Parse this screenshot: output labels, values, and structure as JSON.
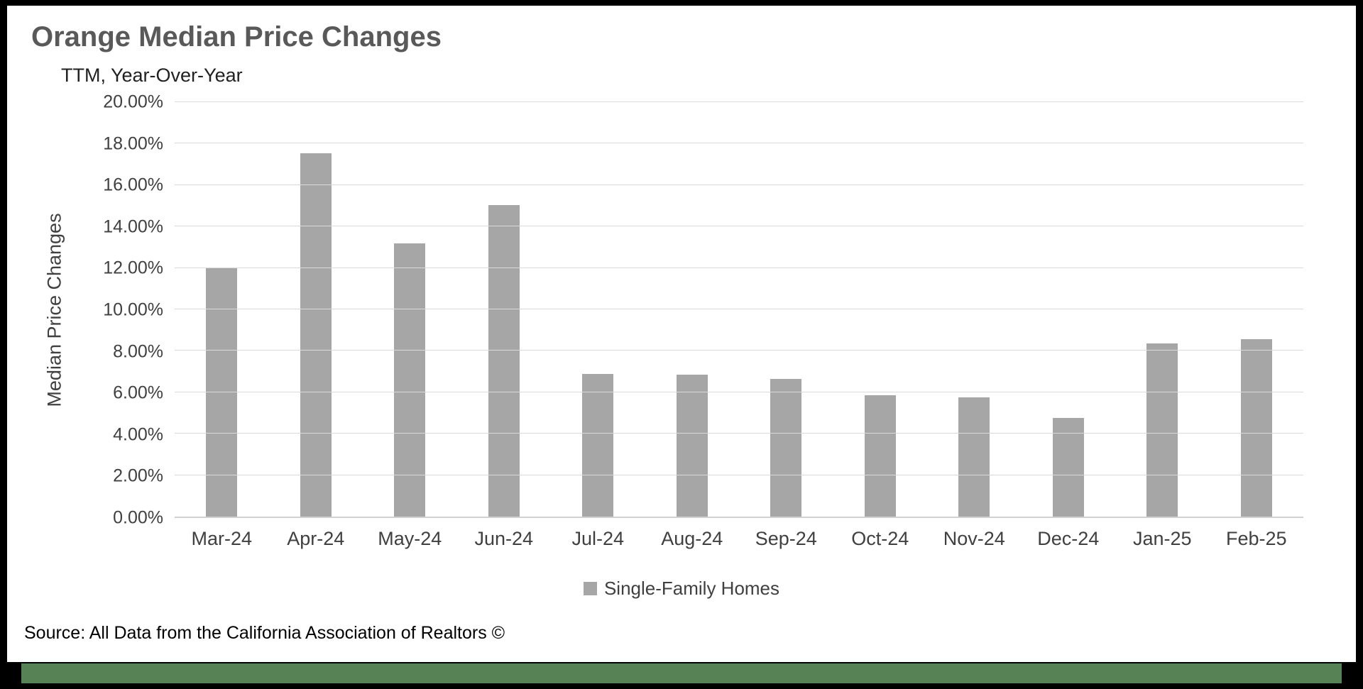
{
  "title": "Orange Median Price Changes",
  "subtitle": "TTM, Year-Over-Year",
  "source": "Source: All Data from the California Association of Realtors ©",
  "legend": {
    "label": "Single-Family Homes"
  },
  "colors": {
    "bar": "#a6a6a6",
    "gridline": "#d9d9d9",
    "title_text": "#595959",
    "accent_strip": "#568256",
    "frame": "#000000"
  },
  "chart_data": {
    "type": "bar",
    "title": "Orange Median Price Changes",
    "subtitle": "TTM, Year-Over-Year",
    "categories": [
      "Mar-24",
      "Apr-24",
      "May-24",
      "Jun-24",
      "Jul-24",
      "Aug-24",
      "Sep-24",
      "Oct-24",
      "Nov-24",
      "Dec-24",
      "Jan-25",
      "Feb-25"
    ],
    "series": [
      {
        "name": "Single-Family Homes",
        "values": [
          12.0,
          17.55,
          13.2,
          15.05,
          6.9,
          6.85,
          6.65,
          5.85,
          5.75,
          4.75,
          8.35,
          8.55
        ]
      }
    ],
    "xlabel": "",
    "ylabel": "Median Price Changes",
    "ylim": [
      0,
      20
    ],
    "ytick_step": 2,
    "ytick_format": "0.00%",
    "grid": true,
    "legend_position": "bottom"
  }
}
